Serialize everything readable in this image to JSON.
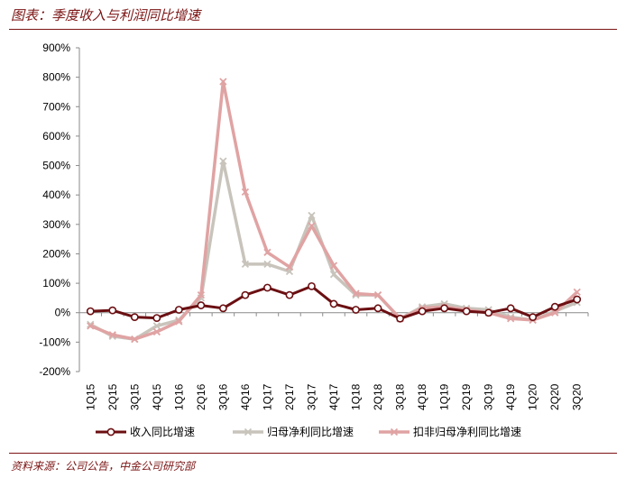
{
  "figure": {
    "title": "图表：季度收入与利润同比增速",
    "source": "资料来源：公司公告，中金公司研究部"
  },
  "chart_data": {
    "type": "line",
    "title": "",
    "xlabel": "",
    "ylabel": "",
    "ylim": [
      -200,
      900
    ],
    "y_ticks": [
      "900%",
      "800%",
      "700%",
      "600%",
      "500%",
      "400%",
      "300%",
      "200%",
      "100%",
      "0%",
      "-100%",
      "-200%"
    ],
    "y_tick_values": [
      900,
      800,
      700,
      600,
      500,
      400,
      300,
      200,
      100,
      0,
      -100,
      -200
    ],
    "categories": [
      "1Q15",
      "2Q15",
      "3Q15",
      "4Q15",
      "1Q16",
      "2Q16",
      "3Q16",
      "4Q16",
      "1Q17",
      "2Q17",
      "3Q17",
      "4Q17",
      "1Q18",
      "2Q18",
      "3Q18",
      "4Q18",
      "1Q19",
      "2Q19",
      "3Q19",
      "4Q19",
      "1Q20",
      "2Q20",
      "3Q20"
    ],
    "grid": false,
    "legend_position": "bottom",
    "series": [
      {
        "name": "收入同比增速",
        "color": "#6b0f12",
        "marker": "circle",
        "values": [
          5,
          8,
          -15,
          -18,
          10,
          25,
          15,
          60,
          85,
          60,
          90,
          30,
          10,
          15,
          -20,
          5,
          15,
          5,
          0,
          15,
          -15,
          20,
          45
        ]
      },
      {
        "name": "归母净利同比增速",
        "color": "#c8c4bc",
        "marker": "x",
        "values": [
          -40,
          -80,
          -90,
          -45,
          -25,
          50,
          515,
          165,
          165,
          140,
          330,
          130,
          60,
          60,
          -20,
          20,
          30,
          15,
          10,
          -15,
          -25,
          5,
          35
        ]
      },
      {
        "name": "扣非归母净利同比增速",
        "color": "#e0a3a3",
        "marker": "x",
        "values": [
          -45,
          -75,
          -90,
          -65,
          -30,
          60,
          785,
          410,
          205,
          155,
          295,
          160,
          65,
          60,
          -20,
          15,
          20,
          10,
          0,
          -20,
          -25,
          0,
          70
        ]
      }
    ]
  }
}
